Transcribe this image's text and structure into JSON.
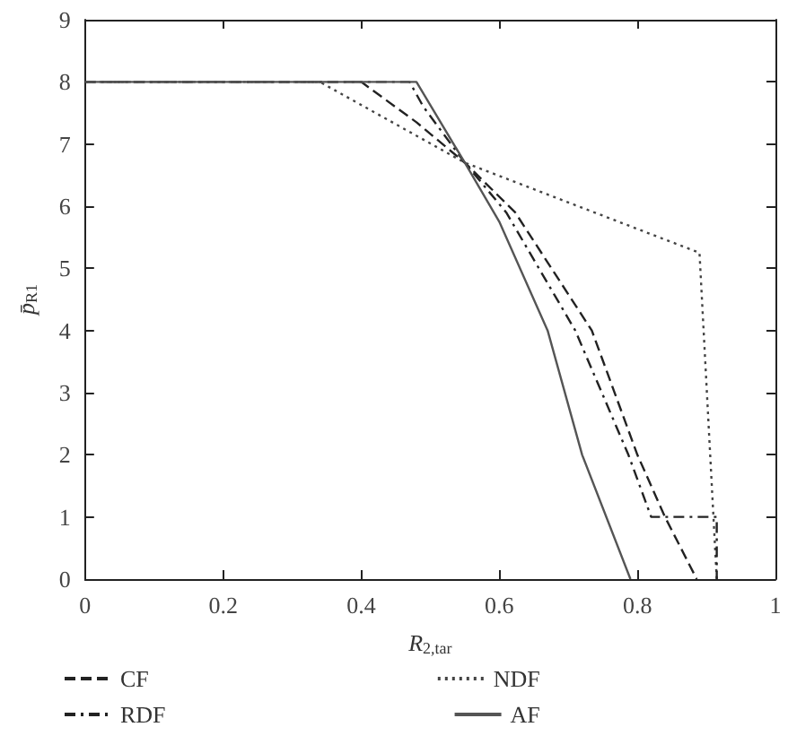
{
  "chart_data": {
    "type": "line",
    "xlabel": "R$_{2,tar}$",
    "ylabel": "p̄$_{R1}$",
    "xlim": [
      0,
      1
    ],
    "xticks": [
      0,
      0.2,
      0.4,
      0.6,
      0.8,
      1
    ],
    "ylim": [
      0,
      9
    ],
    "yticks": [
      0,
      1,
      2,
      3,
      4,
      5,
      6,
      7,
      8,
      9
    ],
    "grid": false,
    "legend": "bottom",
    "marker": "none",
    "series": [
      {
        "name": "CF",
        "color": "#222222",
        "line_style": "dashed",
        "x": [
          0,
          0.4,
          0.48,
          0.55,
          0.623,
          0.734,
          0.8,
          0.84,
          0.886
        ],
        "values": [
          8,
          8,
          7.35,
          6.7,
          5.9,
          4,
          2,
          1,
          0
        ]
      },
      {
        "name": "NDF",
        "color": "#444444",
        "line_style": "dotted",
        "x": [
          0,
          0.34,
          0.55,
          0.89,
          0.915
        ],
        "values": [
          8,
          8,
          6.7,
          5.25,
          0
        ]
      },
      {
        "name": "RDF",
        "color": "#222222",
        "line_style": "dashdot",
        "x": [
          0,
          0.47,
          0.49,
          0.55,
          0.61,
          0.71,
          0.787,
          0.82,
          0.915,
          0.915
        ],
        "values": [
          8,
          8,
          7.6,
          6.7,
          5.9,
          4,
          2,
          1,
          1,
          0
        ]
      },
      {
        "name": "AF",
        "color": "#555555",
        "line_style": "solid",
        "x": [
          0,
          0.48,
          0.55,
          0.6,
          0.67,
          0.72,
          0.79
        ],
        "values": [
          8,
          8,
          6.7,
          5.75,
          4,
          2,
          0
        ]
      }
    ]
  }
}
